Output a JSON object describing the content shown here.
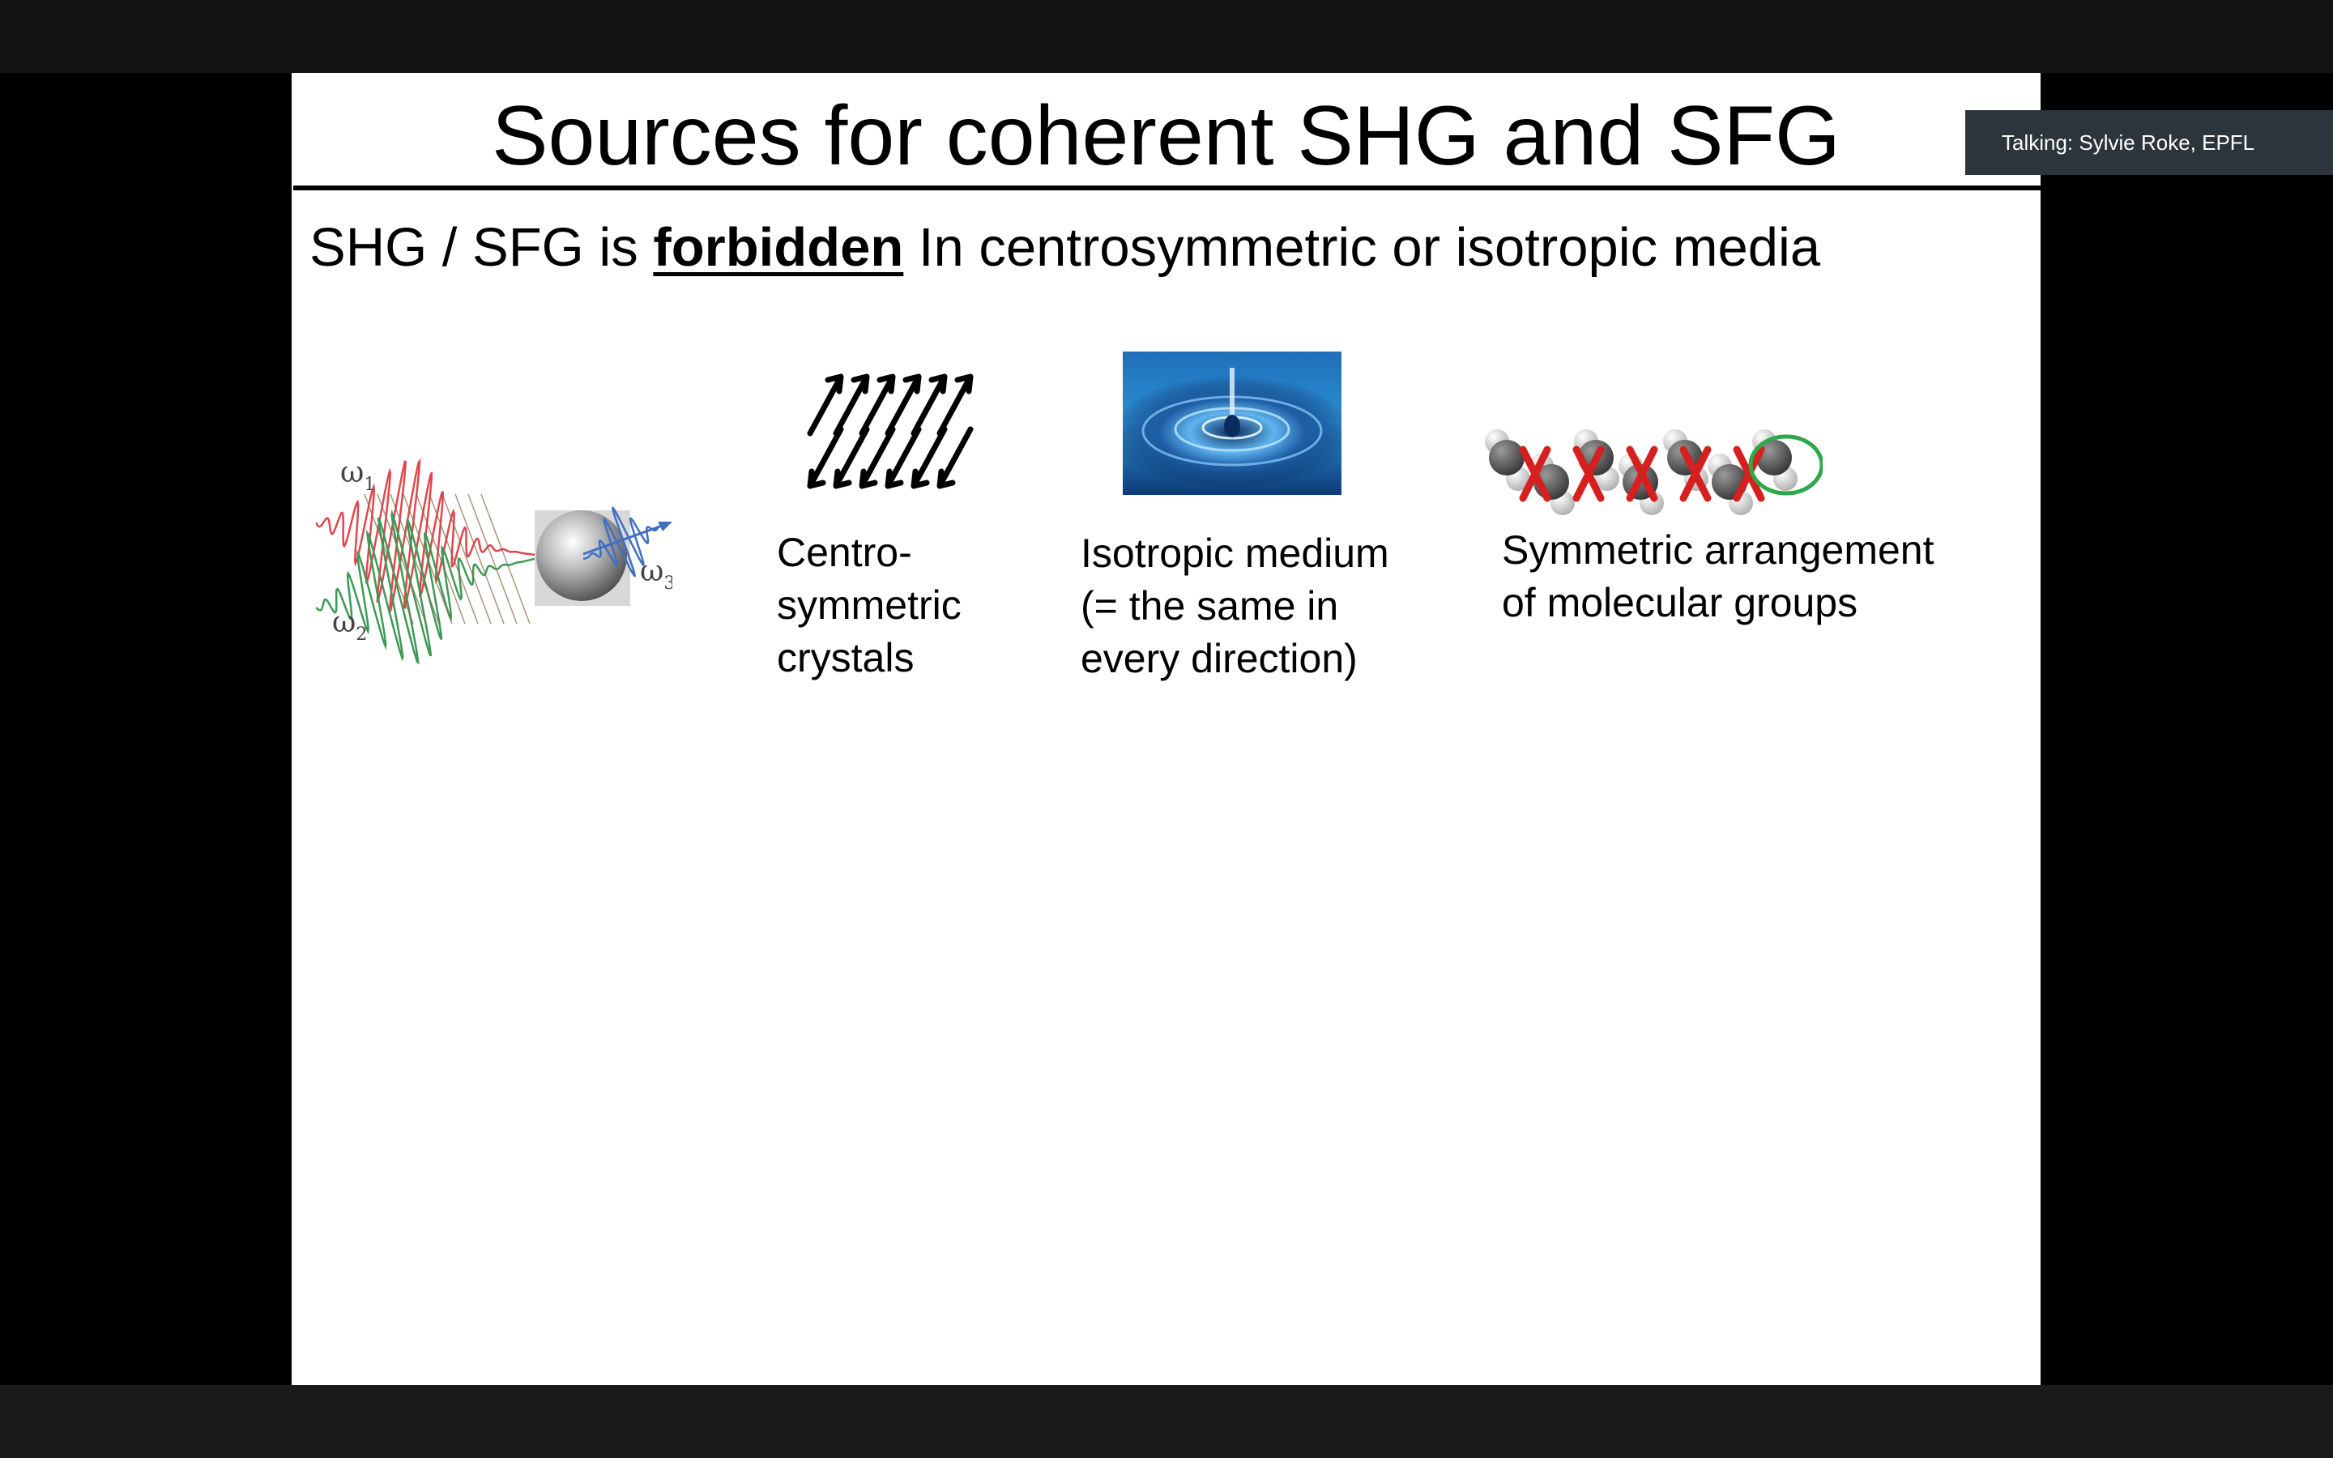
{
  "talking_indicator": {
    "text": "Talking: Sylvie Roke, EPFL"
  },
  "slide": {
    "title": "Sources for coherent SHG and SFG",
    "subtitle": {
      "pre": "SHG / SFG is ",
      "emphasis": "forbidden",
      "post": " In centrosymmetric or isotropic media"
    },
    "figures": {
      "wave_mixing": {
        "labels": [
          "ω",
          "1",
          "ω",
          "2",
          "ω",
          "3"
        ]
      },
      "centrosymmetric": {
        "lines": [
          "Centro-",
          "symmetric",
          "crystals"
        ]
      },
      "isotropic": {
        "lines": [
          "Isotropic medium",
          "(= the same in",
          "every direction)"
        ]
      },
      "molecular": {
        "lines": [
          "Symmetric arrangement",
          "of molecular groups"
        ]
      }
    }
  },
  "colors": {
    "top_bar": "#131313",
    "slide_bg": "#ffffff",
    "talking_bg": "#2c343c",
    "wave_red": "#e0474c",
    "wave_green": "#3c9a55",
    "wave_blue": "#3f6fc4",
    "cross_red": "#d62020",
    "circle_green": "#2ea84a"
  }
}
